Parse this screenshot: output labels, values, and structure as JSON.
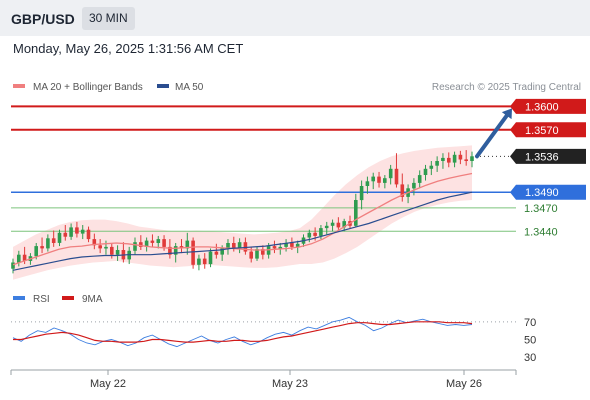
{
  "header": {
    "symbol": "GBP/USD",
    "timeframe": "30 MIN"
  },
  "timestamp": "Monday, May 26, 2025 1:31:56 AM CET",
  "credit": "Research © 2025 Trading Central",
  "legend": {
    "ma20": "MA 20 + Bollinger Bands",
    "ma50": "MA 50",
    "rsi": "RSI",
    "rsi_ma": "9MA"
  },
  "colors": {
    "resistance": "#d11a1a",
    "support": "#2f6fdc",
    "pivot": "#222222",
    "ma20": "#f07f7f",
    "ma50": "#2a4d8f",
    "band": "#fde2e2",
    "up": "#2e9c4f",
    "down": "#e03a3a",
    "rsi": "#3d7ee0",
    "rsi_ma": "#d11a1a",
    "arrow": "#2f5e9e",
    "target_line": "#7cc47c"
  },
  "chart_data": [
    {
      "type": "candlestick",
      "x_ticks": [
        "May 22",
        "May 23",
        "May 26"
      ],
      "levels": [
        {
          "value": "1.3600",
          "kind": "resistance"
        },
        {
          "value": "1.3570",
          "kind": "resistance"
        },
        {
          "value": "1.3536",
          "kind": "last"
        },
        {
          "value": "1.3490",
          "kind": "support"
        },
        {
          "value": "1.3470",
          "kind": "target"
        },
        {
          "value": "1.3440",
          "kind": "target"
        }
      ],
      "ylim": [
        1.3375,
        1.3612
      ],
      "candles": [
        [
          1.3392,
          1.3405,
          1.3386,
          1.34
        ],
        [
          1.34,
          1.3415,
          1.3395,
          1.341
        ],
        [
          1.341,
          1.342,
          1.3398,
          1.3402
        ],
        [
          1.3402,
          1.3412,
          1.3397,
          1.3408
        ],
        [
          1.3408,
          1.3425,
          1.3404,
          1.3421
        ],
        [
          1.3421,
          1.3432,
          1.3412,
          1.3418
        ],
        [
          1.3418,
          1.3436,
          1.3414,
          1.3431
        ],
        [
          1.3431,
          1.3441,
          1.342,
          1.3425
        ],
        [
          1.3425,
          1.3442,
          1.3421,
          1.3438
        ],
        [
          1.3438,
          1.3448,
          1.3428,
          1.3433
        ],
        [
          1.3433,
          1.345,
          1.3429,
          1.3445
        ],
        [
          1.3445,
          1.3452,
          1.3432,
          1.3437
        ],
        [
          1.3437,
          1.3448,
          1.343,
          1.3442
        ],
        [
          1.3442,
          1.3446,
          1.3426,
          1.343
        ],
        [
          1.343,
          1.3437,
          1.3417,
          1.3422
        ],
        [
          1.3422,
          1.343,
          1.3412,
          1.3418
        ],
        [
          1.3418,
          1.3428,
          1.341,
          1.342
        ],
        [
          1.342,
          1.3424,
          1.3405,
          1.341
        ],
        [
          1.341,
          1.3422,
          1.3402,
          1.3416
        ],
        [
          1.3416,
          1.3426,
          1.34,
          1.3404
        ],
        [
          1.3404,
          1.342,
          1.3398,
          1.3415
        ],
        [
          1.3415,
          1.3432,
          1.341,
          1.3426
        ],
        [
          1.3426,
          1.3435,
          1.3416,
          1.342
        ],
        [
          1.342,
          1.3432,
          1.3414,
          1.3428
        ],
        [
          1.3428,
          1.3436,
          1.342,
          1.3425
        ],
        [
          1.3425,
          1.3434,
          1.3418,
          1.343
        ],
        [
          1.343,
          1.3435,
          1.3415,
          1.342
        ],
        [
          1.342,
          1.343,
          1.3405,
          1.341
        ],
        [
          1.341,
          1.3425,
          1.34,
          1.3421
        ],
        [
          1.3421,
          1.343,
          1.3412,
          1.3418
        ],
        [
          1.3418,
          1.3438,
          1.341,
          1.3428
        ],
        [
          1.3428,
          1.3432,
          1.3392,
          1.3397
        ],
        [
          1.3397,
          1.341,
          1.339,
          1.3405
        ],
        [
          1.3405,
          1.3412,
          1.3392,
          1.3398
        ],
        [
          1.3398,
          1.3418,
          1.3394,
          1.3414
        ],
        [
          1.3414,
          1.3424,
          1.3405,
          1.341
        ],
        [
          1.341,
          1.3422,
          1.3402,
          1.3418
        ],
        [
          1.3418,
          1.343,
          1.341,
          1.3425
        ],
        [
          1.3425,
          1.3433,
          1.3414,
          1.3419
        ],
        [
          1.3419,
          1.3431,
          1.3412,
          1.3426
        ],
        [
          1.3426,
          1.3432,
          1.341,
          1.3414
        ],
        [
          1.3414,
          1.342,
          1.34,
          1.3405
        ],
        [
          1.3405,
          1.342,
          1.3402,
          1.3417
        ],
        [
          1.3417,
          1.3422,
          1.3404,
          1.341
        ],
        [
          1.341,
          1.3425,
          1.3405,
          1.3421
        ],
        [
          1.3421,
          1.3428,
          1.3412,
          1.3418
        ],
        [
          1.3418,
          1.3425,
          1.341,
          1.342
        ],
        [
          1.342,
          1.343,
          1.3414,
          1.3425
        ],
        [
          1.3425,
          1.3432,
          1.3416,
          1.342
        ],
        [
          1.342,
          1.3428,
          1.3412,
          1.3424
        ],
        [
          1.3424,
          1.3436,
          1.342,
          1.3432
        ],
        [
          1.3432,
          1.3442,
          1.3426,
          1.3438
        ],
        [
          1.3438,
          1.3445,
          1.3428,
          1.3434
        ],
        [
          1.3434,
          1.3448,
          1.343,
          1.3444
        ],
        [
          1.3444,
          1.3452,
          1.3436,
          1.3447
        ],
        [
          1.3447,
          1.3455,
          1.344,
          1.3451
        ],
        [
          1.3451,
          1.3458,
          1.3442,
          1.3445
        ],
        [
          1.3445,
          1.3456,
          1.344,
          1.3453
        ],
        [
          1.3453,
          1.346,
          1.3444,
          1.3447
        ],
        [
          1.3447,
          1.3488,
          1.3445,
          1.348
        ],
        [
          1.348,
          1.3505,
          1.3468,
          1.3498
        ],
        [
          1.3498,
          1.351,
          1.3488,
          1.3504
        ],
        [
          1.3504,
          1.3515,
          1.3494,
          1.351
        ],
        [
          1.351,
          1.3516,
          1.3496,
          1.3502
        ],
        [
          1.3502,
          1.3512,
          1.3495,
          1.3508
        ],
        [
          1.3508,
          1.3525,
          1.35,
          1.352
        ],
        [
          1.352,
          1.354,
          1.3496,
          1.35
        ],
        [
          1.35,
          1.3514,
          1.3478,
          1.3484
        ],
        [
          1.3484,
          1.35,
          1.3476,
          1.3495
        ],
        [
          1.3495,
          1.3508,
          1.3486,
          1.3502
        ],
        [
          1.3502,
          1.3518,
          1.3496,
          1.3512
        ],
        [
          1.3512,
          1.3525,
          1.3505,
          1.352
        ],
        [
          1.352,
          1.353,
          1.3512,
          1.3524
        ],
        [
          1.3524,
          1.3536,
          1.3516,
          1.353
        ],
        [
          1.353,
          1.354,
          1.352,
          1.3534
        ],
        [
          1.3534,
          1.3541,
          1.3522,
          1.3528
        ],
        [
          1.3528,
          1.3542,
          1.3522,
          1.3538
        ],
        [
          1.3538,
          1.3543,
          1.3526,
          1.3532
        ],
        [
          1.3532,
          1.3544,
          1.3524,
          1.353
        ],
        [
          1.353,
          1.3542,
          1.3522,
          1.3536
        ]
      ],
      "ma20": [
        1.3397,
        1.3402,
        1.3407,
        1.3412,
        1.3417,
        1.342,
        1.3421,
        1.3423,
        1.3424,
        1.3425,
        1.3424,
        1.3422,
        1.342,
        1.3419,
        1.3418,
        1.3419,
        1.342,
        1.342,
        1.3419,
        1.3418,
        1.3417,
        1.3416,
        1.3416,
        1.3417,
        1.3418,
        1.342,
        1.3424,
        1.343,
        1.3438,
        1.3447,
        1.3456,
        1.3464,
        1.3472,
        1.348,
        1.3487,
        1.3493,
        1.3499,
        1.3504,
        1.3508,
        1.3511,
        1.3514
      ],
      "ma50": [
        1.339,
        1.3393,
        1.3396,
        1.3399,
        1.3402,
        1.3405,
        1.3407,
        1.3408,
        1.3409,
        1.3409,
        1.341,
        1.341,
        1.341,
        1.3411,
        1.3412,
        1.3413,
        1.3414,
        1.3415,
        1.3416,
        1.3418,
        1.3419,
        1.342,
        1.3421,
        1.3423,
        1.3425,
        1.3427,
        1.343,
        1.3434,
        1.3438,
        1.3442,
        1.3446,
        1.345,
        1.3455,
        1.346,
        1.3465,
        1.347,
        1.3475,
        1.348,
        1.3484,
        1.3487,
        1.349
      ],
      "bb_upper": [
        1.342,
        1.3428,
        1.3436,
        1.3442,
        1.3448,
        1.3452,
        1.3454,
        1.3455,
        1.3455,
        1.3453,
        1.345,
        1.3446,
        1.3444,
        1.3442,
        1.344,
        1.344,
        1.3441,
        1.344,
        1.3439,
        1.3438,
        1.3437,
        1.3436,
        1.3437,
        1.3438,
        1.344,
        1.3444,
        1.3455,
        1.347,
        1.3486,
        1.35,
        1.3512,
        1.3522,
        1.353,
        1.3536,
        1.354,
        1.3543,
        1.3545,
        1.3547,
        1.3548,
        1.3549,
        1.355
      ],
      "bb_lower": [
        1.3378,
        1.3382,
        1.3386,
        1.339,
        1.3393,
        1.3396,
        1.3398,
        1.34,
        1.3401,
        1.3402,
        1.34,
        1.3398,
        1.3396,
        1.3395,
        1.3394,
        1.3395,
        1.3396,
        1.3397,
        1.3396,
        1.3395,
        1.3394,
        1.3393,
        1.3393,
        1.3394,
        1.3396,
        1.3398,
        1.3398,
        1.34,
        1.3405,
        1.3412,
        1.342,
        1.343,
        1.344,
        1.345,
        1.3458,
        1.3465,
        1.347,
        1.3474,
        1.3477,
        1.3479,
        1.348
      ]
    },
    {
      "type": "line",
      "ylim": [
        20,
        80
      ],
      "y_ticks": [
        "70",
        "50",
        "30"
      ],
      "series": [
        {
          "name": "RSI",
          "values": [
            52,
            48,
            55,
            60,
            58,
            63,
            60,
            56,
            50,
            46,
            44,
            48,
            50,
            47,
            43,
            46,
            52,
            55,
            50,
            45,
            42,
            46,
            50,
            54,
            49,
            46,
            50,
            53,
            48,
            44,
            47,
            52,
            56,
            58,
            55,
            60,
            64,
            62,
            66,
            70,
            72,
            75,
            70,
            66,
            60,
            63,
            68,
            72,
            69,
            71,
            73,
            70,
            68,
            66,
            67,
            66,
            67
          ]
        },
        {
          "name": "9MA",
          "values": [
            50,
            50,
            52,
            54,
            56,
            57,
            58,
            57,
            55,
            52,
            49,
            48,
            48,
            47,
            47,
            47,
            48,
            50,
            50,
            49,
            48,
            47,
            47,
            48,
            49,
            48,
            48,
            49,
            49,
            48,
            48,
            49,
            51,
            53,
            54,
            56,
            58,
            60,
            62,
            64,
            66,
            68,
            69,
            69,
            68,
            67,
            67,
            68,
            69,
            70,
            70,
            70,
            70,
            69,
            69,
            69,
            68
          ]
        }
      ]
    }
  ]
}
